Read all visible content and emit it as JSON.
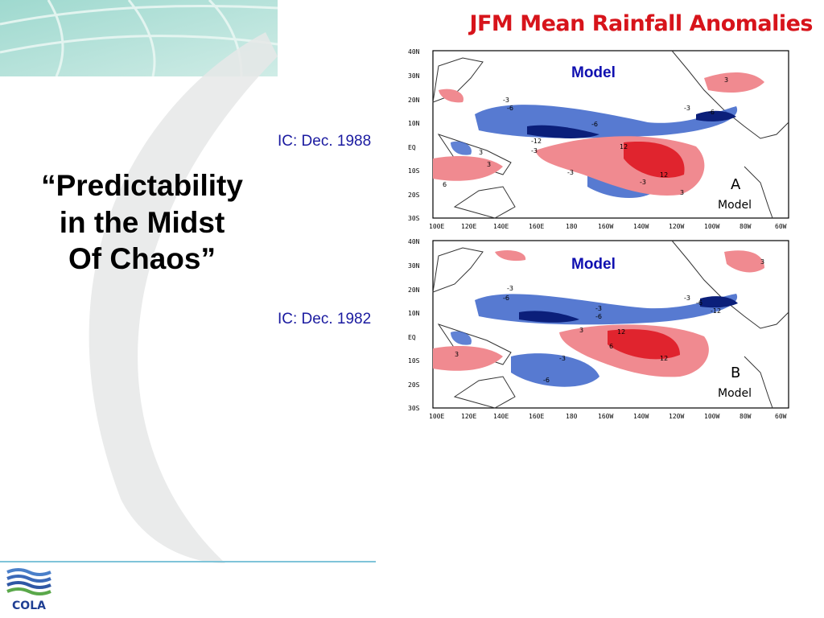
{
  "title": "JFM Mean Rainfall Anomalies",
  "quote_lines": [
    "“Predictability",
    "in the Midst",
    "Of Chaos”"
  ],
  "panels": [
    {
      "ic_label": "IC: Dec. 1988",
      "model_label": "Model",
      "panel_letter": "A",
      "panel_name": "Model"
    },
    {
      "ic_label": "IC: Dec. 1982",
      "model_label": "Model",
      "panel_letter": "B",
      "panel_name": "Model"
    }
  ],
  "map_axes": {
    "lat_ticks": [
      "40N",
      "30N",
      "20N",
      "10N",
      "EQ",
      "10S",
      "20S",
      "30S"
    ],
    "lon_ticks": [
      "100E",
      "120E",
      "140E",
      "160E",
      "180",
      "160W",
      "140W",
      "120W",
      "100W",
      "80W",
      "60W"
    ]
  },
  "contour_labels": {
    "a": [
      "-3",
      "-6",
      "-6",
      "-12",
      "-3",
      "3",
      "-3",
      "12",
      "12",
      "-3",
      "-6",
      "3",
      "-3",
      "3",
      "6",
      "3"
    ],
    "b": [
      "-3",
      "-6",
      "-3",
      "-6",
      "-3",
      "-6",
      "-12",
      "12",
      "6",
      "12",
      "3",
      "-3",
      "-6",
      "3",
      "3"
    ]
  },
  "logo_text": "COLA",
  "colors": {
    "title": "#d7141b",
    "ic_text": "#1a1aa0",
    "model_text": "#1010b0",
    "positive_anomaly": "#e8505a",
    "negative_anomaly": "#3a63c9",
    "footer_line": "#7fc4d9"
  }
}
